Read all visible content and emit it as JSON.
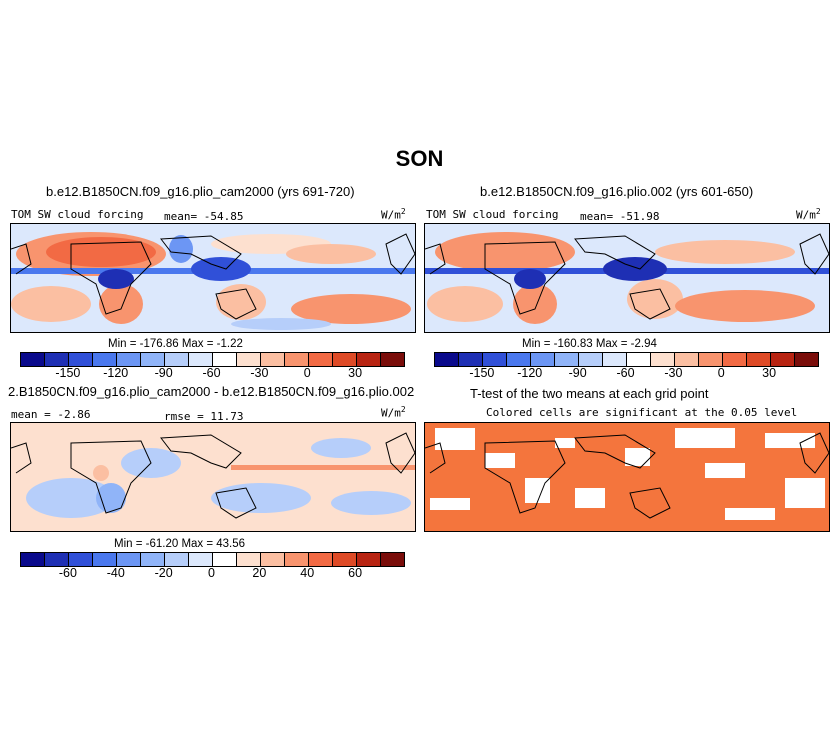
{
  "figure": {
    "season_title": "SON"
  },
  "panels": {
    "top_left": {
      "case": "b.e12.B1850CN.f09_g16.plio_cam2000 (yrs 691-720)",
      "variable": "TOM SW cloud forcing",
      "mean": "mean= -54.85",
      "units": "W/m",
      "units_sup": "2",
      "minmax": "Min = -176.86  Max =   -1.22"
    },
    "top_right": {
      "case": "b.e12.B1850CN.f09_g16.plio.002 (yrs 601-650)",
      "variable": "TOM SW cloud forcing",
      "mean": "mean= -51.98",
      "units": "W/m",
      "units_sup": "2",
      "minmax": "Min = -160.83  Max =   -2.94"
    },
    "bottom_left": {
      "case": "2.B1850CN.f09_g16.plio_cam2000 - b.e12.B1850CN.f09_g16.plio.002",
      "mean": "mean =  -2.86",
      "rmse": "rmse =  11.73",
      "units": "W/m",
      "units_sup": "2",
      "minmax": "Min = -61.20  Max =  43.56"
    },
    "bottom_right": {
      "title": "T-test of the two means at each grid point",
      "subtitle": "Colored cells are significant at the 0.05 level"
    }
  },
  "colorbars": {
    "colors": [
      "#0a0a8c",
      "#1e2fb4",
      "#3050d8",
      "#4a78ee",
      "#6c96f4",
      "#90b4f8",
      "#b6cefa",
      "#dce8fc",
      "#ffffff",
      "#fde0cf",
      "#fbbfa2",
      "#f8946e",
      "#f26a44",
      "#de4a26",
      "#b82412",
      "#7a0d0a"
    ],
    "full_ticks": [
      "-150",
      "-120",
      "-90",
      "-60",
      "-30",
      "0",
      "30"
    ],
    "diff_ticks": [
      "-60",
      "-40",
      "-20",
      "0",
      "20",
      "40",
      "60"
    ]
  },
  "ttest_color": "#f4753d"
}
